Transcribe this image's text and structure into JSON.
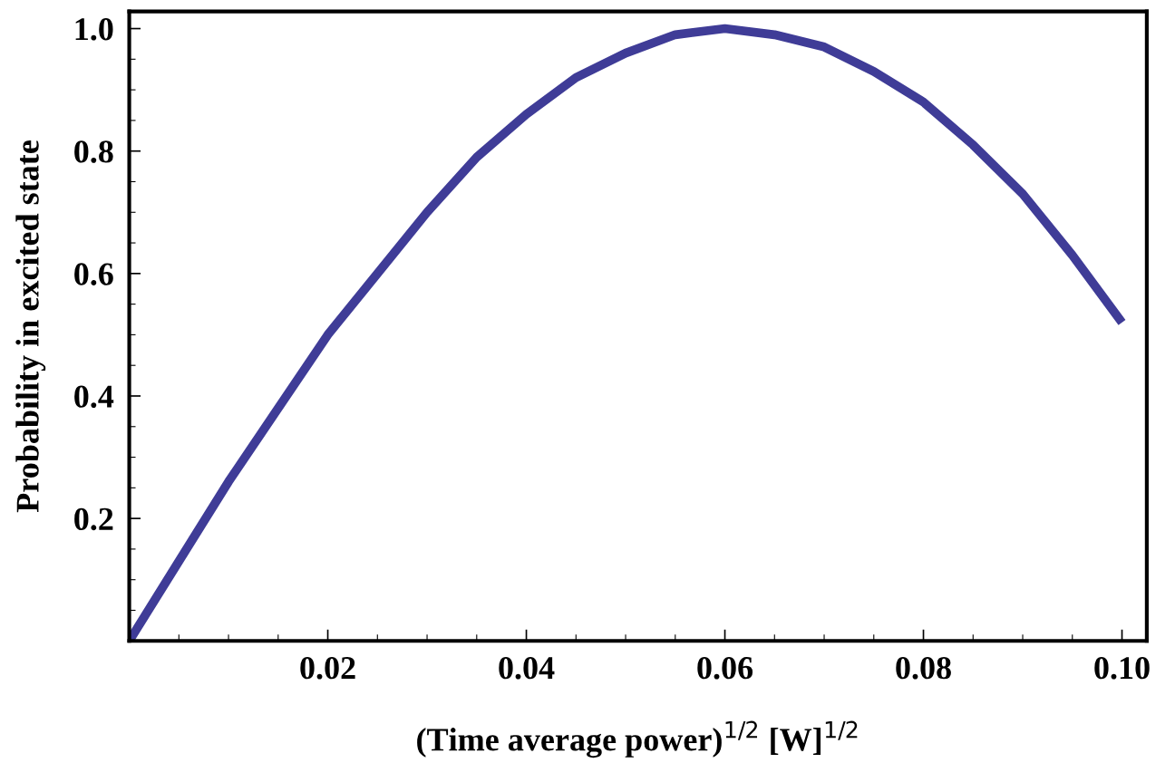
{
  "chart_data": {
    "type": "line",
    "xlabel": "(Time average power)$^{1/2}$ [W]$^{1/2}$",
    "ylabel": "Probability in excited state",
    "x": [
      0,
      0.005,
      0.01,
      0.015,
      0.02,
      0.025,
      0.03,
      0.035,
      0.04,
      0.045,
      0.05,
      0.055,
      0.06,
      0.065,
      0.07,
      0.075,
      0.08,
      0.085,
      0.09,
      0.095,
      0.1
    ],
    "series": [
      {
        "color": "#3f3c97",
        "values": [
          0,
          0.13,
          0.26,
          0.38,
          0.5,
          0.6,
          0.7,
          0.79,
          0.86,
          0.92,
          0.96,
          0.99,
          1.0,
          0.99,
          0.97,
          0.93,
          0.88,
          0.81,
          0.73,
          0.63,
          0.52
        ]
      }
    ],
    "xlim": [
      0,
      0.1025
    ],
    "ylim": [
      0,
      1.028
    ],
    "xticks": [
      {
        "value": 0,
        "label": null
      },
      0.02,
      0.04,
      0.06,
      0.08,
      {
        "value": 0.1,
        "label": "0.10"
      }
    ],
    "yticks": [
      {
        "value": 0,
        "label": null
      },
      0.2,
      0.4,
      0.6,
      0.8,
      {
        "value": 1.0,
        "label": "1.0"
      }
    ],
    "grid": false,
    "legend": false,
    "marker": "none",
    "line_style": "solid"
  }
}
